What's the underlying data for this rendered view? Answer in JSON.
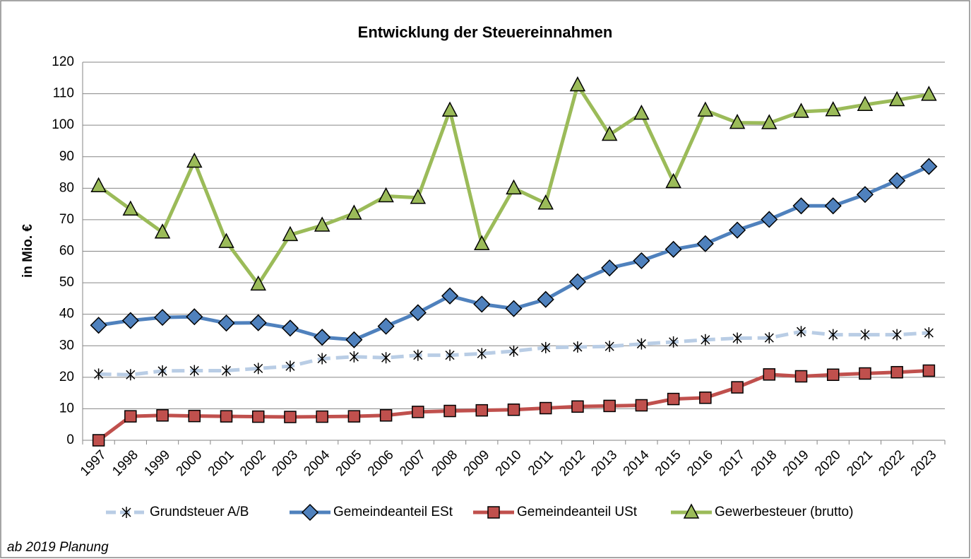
{
  "chart_data": {
    "type": "line",
    "title": "Entwicklung der Steuereinnahmen",
    "y_label": "in Mio. €",
    "note": "ab 2019 Planung",
    "categories": [
      "1997",
      "1998",
      "1999",
      "2000",
      "2001",
      "2002",
      "2003",
      "2004",
      "2005",
      "2006",
      "2007",
      "2008",
      "2009",
      "2010",
      "2011",
      "2012",
      "2013",
      "2014",
      "2015",
      "2016",
      "2017",
      "2018",
      "2019",
      "2020",
      "2021",
      "2022",
      "2023"
    ],
    "ylim": [
      0,
      120
    ],
    "yticks": [
      0,
      10,
      20,
      30,
      40,
      50,
      60,
      70,
      80,
      90,
      100,
      110,
      120
    ],
    "grid": true,
    "legend": "bottom",
    "series": [
      {
        "name": "Grundsteuer A/B",
        "color": "#b9cde5",
        "marker": "star",
        "line_style": "dashed",
        "values": [
          21,
          20.8,
          22,
          22.1,
          22.1,
          22.8,
          23.5,
          25.9,
          26.5,
          26.2,
          27,
          27,
          27.5,
          28.3,
          29.4,
          29.6,
          29.8,
          30.6,
          31.2,
          31.9,
          32.4,
          32.5,
          34.5,
          33.5,
          33.5,
          33.5,
          34.1
        ]
      },
      {
        "name": "Gemeindeanteil ESt",
        "color": "#4f81bd",
        "marker": "diamond",
        "line_style": "solid",
        "values": [
          36.5,
          38,
          39,
          39.2,
          37.2,
          37.3,
          35.6,
          32.7,
          31.9,
          36.2,
          40.5,
          45.8,
          43.2,
          41.8,
          44.7,
          50.3,
          54.7,
          57,
          60.6,
          62.4,
          66.7,
          70.1,
          74.4,
          74.4,
          78,
          82.4,
          86.9
        ]
      },
      {
        "name": "Gemeindeanteil USt",
        "color": "#c0504d",
        "marker": "square",
        "line_style": "solid",
        "values": [
          0,
          7.6,
          7.9,
          7.7,
          7.6,
          7.5,
          7.4,
          7.5,
          7.6,
          7.9,
          9,
          9.3,
          9.5,
          9.7,
          10.2,
          10.7,
          10.9,
          11.1,
          13.1,
          13.5,
          16.8,
          20.9,
          20.3,
          20.8,
          21.2,
          21.6,
          22.1
        ]
      },
      {
        "name": "Gewerbesteuer (brutto)",
        "color": "#9bbb59",
        "marker": "triangle",
        "line_style": "solid",
        "values": [
          80.7,
          73.3,
          66,
          88.5,
          63,
          49.5,
          65.2,
          68.2,
          72,
          77.5,
          77,
          104.7,
          62.3,
          80,
          75.2,
          112.7,
          97,
          103.7,
          82,
          104.7,
          100.8,
          100.7,
          104.3,
          104.8,
          106.5,
          108,
          109.7
        ]
      }
    ]
  }
}
